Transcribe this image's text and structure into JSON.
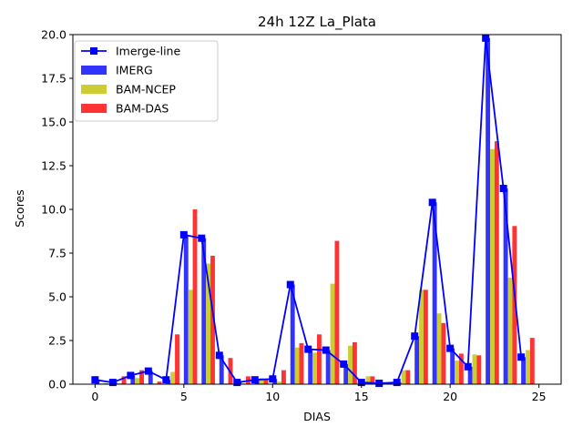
{
  "chart_data": {
    "type": "bar",
    "title": "24h 12Z La_Plata",
    "xlabel": "DIAS",
    "ylabel": "Scores",
    "xlim": [
      -1.25,
      26.25
    ],
    "ylim": [
      0,
      20
    ],
    "x_ticks": [
      "0",
      "5",
      "10",
      "15",
      "20",
      "25"
    ],
    "y_ticks": [
      "0.0",
      "2.5",
      "5.0",
      "7.5",
      "10.0",
      "12.5",
      "15.0",
      "17.5",
      "20.0"
    ],
    "legend_position": "upper-left",
    "x": [
      0,
      1,
      2,
      3,
      4,
      5,
      6,
      7,
      8,
      9,
      10,
      11,
      12,
      13,
      14,
      15,
      16,
      17,
      18,
      19,
      20,
      21,
      22,
      23,
      24
    ],
    "series": [
      {
        "name": "Imerge-line",
        "type": "line",
        "color": "#0000ff",
        "values": [
          0.25,
          0.1,
          0.5,
          0.75,
          0.25,
          8.55,
          8.35,
          1.65,
          0.1,
          0.25,
          0.3,
          5.7,
          2.0,
          1.95,
          1.15,
          0.1,
          0.05,
          0.1,
          2.75,
          10.4,
          2.05,
          1.0,
          19.8,
          11.2,
          1.55
        ]
      },
      {
        "name": "IMERG",
        "type": "bar",
        "color": "#3333ff",
        "values": [
          0.25,
          0.1,
          0.5,
          0.75,
          0.25,
          8.55,
          8.35,
          1.65,
          0.1,
          0.25,
          0.3,
          5.7,
          2.0,
          1.95,
          1.15,
          0.1,
          0.05,
          0.1,
          2.75,
          10.4,
          2.05,
          1.0,
          19.8,
          11.2,
          1.55
        ]
      },
      {
        "name": "BAM-NCEP",
        "type": "bar",
        "color": "#cccc33",
        "values": [
          0.05,
          0.05,
          0.35,
          0.05,
          0.7,
          5.4,
          6.9,
          0.05,
          0.05,
          0.35,
          0.15,
          2.1,
          1.8,
          5.75,
          2.2,
          0.45,
          0.05,
          0.8,
          5.4,
          4.05,
          1.35,
          1.7,
          13.45,
          6.1,
          1.95
        ]
      },
      {
        "name": "BAM-DAS",
        "type": "bar",
        "color": "#ff3333",
        "values": [
          0.05,
          0.45,
          0.8,
          0.15,
          2.85,
          10.0,
          7.35,
          1.5,
          0.45,
          0.3,
          0.8,
          2.35,
          2.85,
          8.2,
          2.4,
          0.45,
          0.05,
          0.8,
          5.4,
          3.5,
          1.75,
          1.65,
          13.9,
          9.05,
          2.65
        ]
      }
    ]
  }
}
